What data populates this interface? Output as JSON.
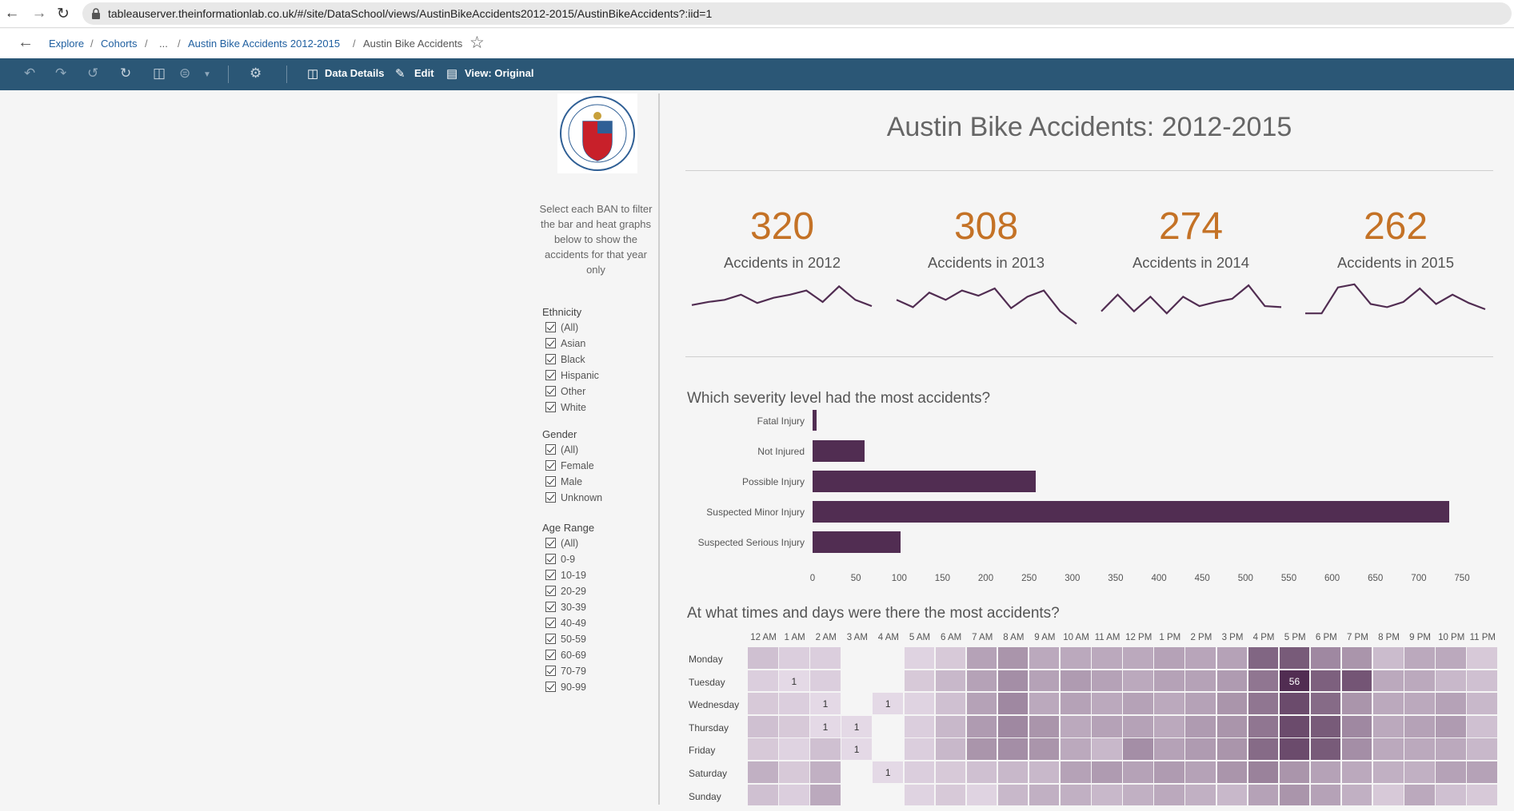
{
  "browser": {
    "url": "tableauserver.theinformationlab.co.uk/#/site/DataSchool/views/AustinBikeAccidents2012-2015/AustinBikeAccidents?:iid=1"
  },
  "breadcrumb": {
    "explore": "Explore",
    "cohorts": "Cohorts",
    "ellipsis": "...",
    "workbook": "Austin Bike Accidents 2012-2015",
    "view": "Austin Bike Accidents",
    "sep": "/"
  },
  "toolbar": {
    "data_details": "Data Details",
    "edit": "Edit",
    "view_original": "View: Original"
  },
  "sidebar": {
    "instruction": "Select each BAN to filter the bar and heat graphs below to show the accidents for that year only",
    "filters": [
      {
        "title": "Ethnicity",
        "items": [
          "(All)",
          "Asian",
          "Black",
          "Hispanic",
          "Other",
          "White"
        ]
      },
      {
        "title": "Gender",
        "items": [
          "(All)",
          "Female",
          "Male",
          "Unknown"
        ]
      },
      {
        "title": "Age Range",
        "items": [
          "(All)",
          "0-9",
          "10-19",
          "20-29",
          "30-39",
          "40-49",
          "50-59",
          "60-69",
          "70-79",
          "90-99"
        ]
      }
    ]
  },
  "dashboard": {
    "title": "Austin Bike Accidents: 2012-2015",
    "accent_color": "#c47226",
    "mark_color": "#512d52",
    "bans": [
      {
        "value": "320",
        "label": "Accidents in 2012"
      },
      {
        "value": "308",
        "label": "Accidents in 2013"
      },
      {
        "value": "274",
        "label": "Accidents in 2014"
      },
      {
        "value": "262",
        "label": "Accidents in 2015"
      }
    ],
    "sparklines": [
      [
        24,
        27,
        29,
        34,
        26,
        31,
        34,
        38,
        27,
        42,
        29,
        23
      ],
      [
        29,
        22,
        36,
        29,
        38,
        33,
        40,
        21,
        32,
        38,
        18,
        6
      ],
      [
        18,
        34,
        18,
        32,
        16,
        32,
        23,
        27,
        30,
        43,
        23,
        22
      ],
      [
        16,
        16,
        41,
        44,
        25,
        22,
        27,
        40,
        25,
        34,
        26,
        20
      ]
    ],
    "bar_title": "Which severity level had the most accidents?",
    "heat_title": "At what times and days were there the most accidents?"
  },
  "chart_data": [
    {
      "type": "bar",
      "orientation": "horizontal",
      "categories": [
        "Fatal Injury",
        "Not Injured",
        "Possible Injury",
        "Suspected Minor Injury",
        "Suspected Serious Injury"
      ],
      "values": [
        5,
        60,
        258,
        735,
        102
      ],
      "x_ticks": [
        0,
        50,
        100,
        150,
        200,
        250,
        300,
        350,
        400,
        450,
        500,
        550,
        600,
        650,
        700,
        750
      ],
      "xlim": [
        0,
        750
      ],
      "title": "Which severity level had the most accidents?"
    },
    {
      "type": "heatmap",
      "title": "At what times and days were there the most accidents?",
      "x": [
        "12 AM",
        "1 AM",
        "2 AM",
        "3 AM",
        "4 AM",
        "5 AM",
        "6 AM",
        "7 AM",
        "8 AM",
        "9 AM",
        "10 AM",
        "11 AM",
        "12 PM",
        "1 PM",
        "2 PM",
        "3 PM",
        "4 PM",
        "5 PM",
        "6 PM",
        "7 PM",
        "8 PM",
        "9 PM",
        "10 PM",
        "11 PM"
      ],
      "y": [
        "Monday",
        "Tuesday",
        "Wednesday",
        "Thursday",
        "Friday",
        "Saturday",
        "Sunday"
      ],
      "values": [
        [
          6,
          3,
          3,
          0,
          0,
          2,
          4,
          14,
          18,
          12,
          12,
          12,
          12,
          14,
          13,
          14,
          34,
          38,
          22,
          18,
          7,
          12,
          12,
          4
        ],
        [
          3,
          1,
          3,
          0,
          0,
          4,
          8,
          14,
          20,
          14,
          16,
          14,
          12,
          14,
          14,
          16,
          28,
          56,
          36,
          40,
          12,
          12,
          8,
          6
        ],
        [
          4,
          3,
          1,
          0,
          1,
          2,
          6,
          14,
          22,
          12,
          14,
          12,
          14,
          12,
          14,
          18,
          28,
          44,
          32,
          18,
          12,
          12,
          14,
          8
        ],
        [
          6,
          4,
          1,
          1,
          0,
          3,
          8,
          16,
          22,
          18,
          12,
          14,
          14,
          12,
          16,
          18,
          28,
          44,
          38,
          22,
          12,
          14,
          16,
          6
        ],
        [
          4,
          2,
          6,
          1,
          0,
          3,
          8,
          18,
          20,
          18,
          12,
          8,
          20,
          14,
          16,
          18,
          32,
          44,
          38,
          20,
          12,
          12,
          12,
          8
        ],
        [
          10,
          4,
          10,
          0,
          1,
          3,
          4,
          6,
          8,
          8,
          14,
          16,
          14,
          16,
          14,
          18,
          24,
          18,
          14,
          12,
          10,
          10,
          14,
          14
        ],
        [
          6,
          3,
          12,
          0,
          0,
          2,
          4,
          2,
          8,
          10,
          10,
          8,
          10,
          12,
          10,
          8,
          14,
          18,
          14,
          10,
          4,
          12,
          6,
          4
        ]
      ],
      "labels": [
        {
          "day": "Tuesday",
          "hour": "1 AM",
          "text": "1"
        },
        {
          "day": "Tuesday",
          "hour": "5 PM",
          "text": "56"
        },
        {
          "day": "Wednesday",
          "hour": "2 AM",
          "text": "1"
        },
        {
          "day": "Wednesday",
          "hour": "4 AM",
          "text": "1"
        },
        {
          "day": "Thursday",
          "hour": "2 AM",
          "text": "1"
        },
        {
          "day": "Thursday",
          "hour": "3 AM",
          "text": "1"
        },
        {
          "day": "Friday",
          "hour": "3 AM",
          "text": "1"
        },
        {
          "day": "Saturday",
          "hour": "4 AM",
          "text": "1"
        }
      ]
    }
  ]
}
